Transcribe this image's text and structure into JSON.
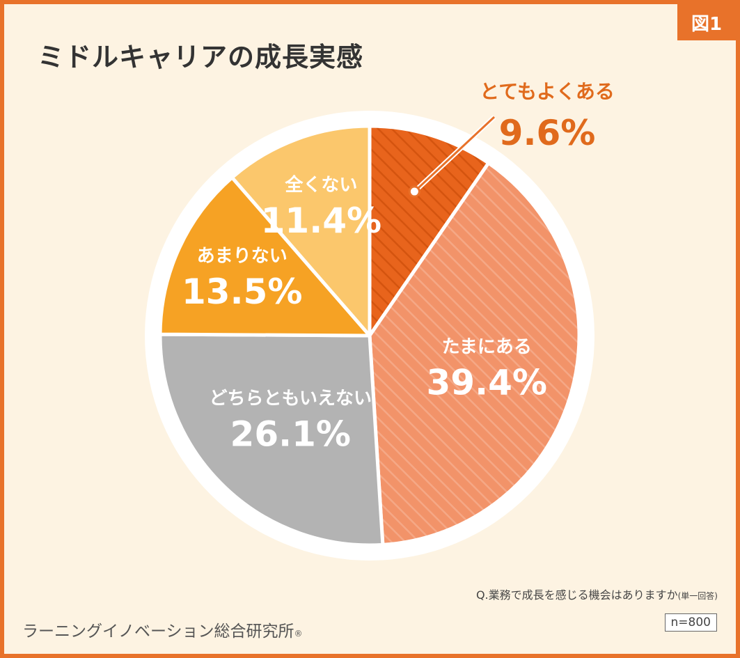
{
  "figure_label": "図1",
  "title": "ミドルキャリアの成長実感",
  "question": "Q.業務で成長を感じる機会はありますか",
  "question_note": "(単一回答)",
  "organization": "ラーニングイノベーション総合研究所",
  "registered_mark": "®",
  "sample_size": "n=800",
  "colors": {
    "frame": "#e8722a",
    "background": "#fdf3e2",
    "text_dark": "#333333"
  },
  "chart_data": {
    "type": "pie",
    "unit": "%",
    "start_angle_deg": 0,
    "direction": "clockwise",
    "slices": [
      {
        "label": "とてもよくある",
        "value": 9.6,
        "display": "9.6%",
        "color": "#e8641c",
        "pattern": "hatched",
        "label_placement": "outside"
      },
      {
        "label": "たまにある",
        "value": 39.4,
        "display": "39.4%",
        "color": "#f2926a",
        "pattern": "hatched",
        "label_placement": "inside"
      },
      {
        "label": "どちらともいえない",
        "value": 26.1,
        "display": "26.1%",
        "color": "#b3b3b3",
        "pattern": "solid",
        "label_placement": "inside"
      },
      {
        "label": "あまりない",
        "value": 13.5,
        "display": "13.5%",
        "color": "#f6a224",
        "pattern": "solid",
        "label_placement": "inside"
      },
      {
        "label": "全くない",
        "value": 11.4,
        "display": "11.4%",
        "color": "#fbc76c",
        "pattern": "solid",
        "label_placement": "inside"
      }
    ]
  }
}
